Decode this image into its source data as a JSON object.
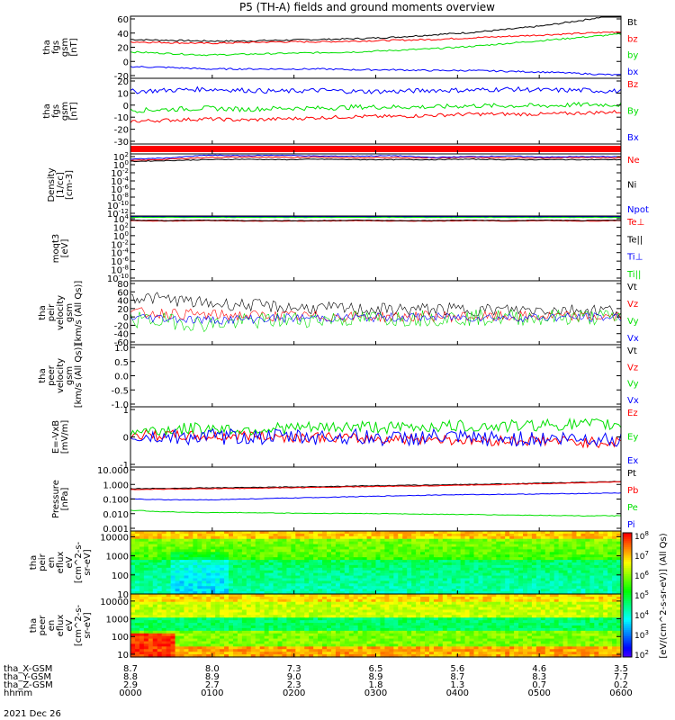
{
  "title": "P5 (TH-A) fields and ground moments overview",
  "date_label": "2021 Dec 26",
  "ephemeris": {
    "labels": [
      "tha_X-GSM",
      "tha_Y-GSM",
      "tha_Z-GSM",
      "hhmm"
    ],
    "rows": [
      [
        "8.7",
        "8.0",
        "7.3",
        "6.5",
        "5.6",
        "4.6",
        "3.5"
      ],
      [
        "8.8",
        "8.9",
        "9.0",
        "8.9",
        "8.7",
        "8.3",
        "7.7"
      ],
      [
        "2.9",
        "2.7",
        "2.3",
        "1.8",
        "1.3",
        "0.7",
        "0.2"
      ],
      [
        "0000",
        "0100",
        "0200",
        "0300",
        "0400",
        "0500",
        "0600"
      ]
    ]
  },
  "colors": {
    "black": "#000000",
    "red": "#ff0000",
    "green": "#00e000",
    "blue": "#0000ff"
  },
  "colorbar_label": "[eV/(cm^2-s-sr-eV)] (All Qs)",
  "colorbar_ticks": [
    "10^2",
    "10^3",
    "10^4",
    "10^5",
    "10^6",
    "10^7",
    "10^8"
  ],
  "chart_data": [
    {
      "type": "line",
      "ylabel": [
        "tha",
        "fgs",
        "gsm",
        "[nT]"
      ],
      "yticks": [
        "60",
        "40",
        "20",
        "0",
        "-20"
      ],
      "ylim": [
        -20,
        60
      ],
      "series": [
        {
          "name": "Bt",
          "color": "black",
          "values": [
            30,
            29,
            28,
            28,
            29,
            30,
            31,
            33,
            36,
            39,
            43,
            48,
            55,
            63
          ],
          "noise": 1
        },
        {
          "name": "bz",
          "color": "red",
          "values": [
            27,
            26,
            25,
            26,
            27,
            27,
            28,
            29,
            30,
            32,
            34,
            36,
            38,
            40
          ],
          "noise": 1
        },
        {
          "name": "by",
          "color": "green",
          "values": [
            14,
            12,
            10,
            11,
            12,
            13,
            14,
            16,
            18,
            21,
            25,
            29,
            33,
            37
          ],
          "noise": 1
        },
        {
          "name": "bx",
          "color": "blue",
          "values": [
            -5,
            -6,
            -8,
            -8,
            -8,
            -8,
            -9,
            -9,
            -10,
            -10,
            -11,
            -12,
            -14,
            -16
          ],
          "noise": 1
        }
      ]
    },
    {
      "type": "line",
      "ylabel": [
        "tha",
        "fgs",
        "gsm",
        "[nT]"
      ],
      "yticks": [
        "20",
        "10",
        "0",
        "-10",
        "-20",
        "-30"
      ],
      "ylim": [
        -35,
        20
      ],
      "series": [
        {
          "name": "Bz",
          "color": "red",
          "values": [
            -16,
            -15,
            -14,
            -15,
            -14,
            -13,
            -12,
            -12,
            -11,
            -10,
            -10,
            -10,
            -9,
            -8
          ],
          "noise": 1.5
        },
        {
          "name": "By",
          "color": "green",
          "values": [
            -7,
            -6,
            -5,
            -6,
            -5,
            -5,
            -4,
            -4,
            -4,
            -3,
            -3,
            -3,
            -2,
            -2
          ],
          "noise": 2
        },
        {
          "name": "Bx",
          "color": "blue",
          "values": [
            9,
            10,
            11,
            10,
            9,
            10,
            9,
            9,
            10,
            10,
            11,
            10,
            10,
            9
          ],
          "noise": 2
        }
      ]
    },
    {
      "type": "bar",
      "ylabel": [],
      "yticks": [],
      "ylim": [
        0,
        1
      ],
      "series": [
        {
          "name": "",
          "color": "red",
          "values": [
            1
          ]
        }
      ]
    },
    {
      "type": "line",
      "log": true,
      "ylabel": [
        "Density",
        "[1/cc]",
        "[cm-3]"
      ],
      "yticks": [
        "10^2",
        "10^0",
        "10^-2",
        "10^-4",
        "10^-6",
        "10^-8",
        "10^-10",
        "10^-12"
      ],
      "ylim": [
        -12,
        2
      ],
      "series": [
        {
          "name": "Ne",
          "color": "red",
          "values": [
            0.5,
            0.8,
            1.2,
            1.3,
            1.2,
            1.3,
            1.1,
            1.2,
            1.1,
            1.2,
            1.1,
            1.1,
            1.2,
            1.1
          ],
          "noise": 0.1
        },
        {
          "name": "Ni",
          "color": "black",
          "values": [
            0.3,
            0.5,
            0.7,
            0.8,
            0.7,
            0.8,
            0.7,
            0.7,
            0.7,
            0.8,
            0.7,
            0.7,
            0.7,
            0.7
          ],
          "noise": 0.08
        },
        {
          "name": "Npot",
          "color": "blue",
          "values": [
            0.8,
            1.1,
            1.7,
            1.6,
            1.7,
            1.5,
            1.5,
            1.6,
            1.2,
            1.4,
            1.5,
            1.3,
            1.4,
            1.4
          ],
          "noise": 0.08
        }
      ]
    },
    {
      "type": "line",
      "log": true,
      "ylabel": [
        "moqt3",
        "[eV]"
      ],
      "yticks": [
        "10^4",
        "10^2",
        "10^0",
        "10^-2",
        "10^-4",
        "10^-6",
        "10^-8",
        "10^-10"
      ],
      "ylim": [
        -10,
        4
      ],
      "series": [
        {
          "name": "Te⊥",
          "color": "red",
          "values": [
            3.0,
            2.9,
            3.0,
            2.9,
            2.9,
            2.9,
            3.0,
            2.9,
            2.9,
            3.0,
            2.9,
            3.0,
            2.9,
            3.0
          ],
          "noise": 0.05
        },
        {
          "name": "Te||",
          "color": "black",
          "values": [
            3.1,
            3.0,
            3.1,
            3.0,
            3.0,
            3.0,
            3.1,
            3.0,
            3.0,
            3.1,
            3.0,
            3.1,
            3.0,
            3.1
          ],
          "noise": 0.05
        },
        {
          "name": "Ti⊥",
          "color": "blue",
          "values": [
            3.9,
            3.9,
            3.8,
            3.9,
            3.9,
            3.9,
            3.9,
            3.9,
            3.9,
            3.9,
            3.9,
            3.9,
            3.9,
            3.9
          ],
          "noise": 0.03
        },
        {
          "name": "Ti||",
          "color": "green",
          "values": [
            3.7,
            3.7,
            3.7,
            3.7,
            3.7,
            3.7,
            3.7,
            3.7,
            3.7,
            3.7,
            3.7,
            3.7,
            3.7,
            3.7
          ],
          "noise": 0.03
        }
      ]
    },
    {
      "type": "line",
      "ylabel": [
        "tha",
        "peir",
        "velocity",
        "gsm",
        "[km/s (All Qs)]"
      ],
      "yticks": [
        "80",
        "60",
        "40",
        "20",
        "0",
        "-20",
        "-40",
        "-60"
      ],
      "ylim": [
        -60,
        80
      ],
      "series": [
        {
          "name": "Vt",
          "color": "black",
          "values": [
            45,
            40,
            30,
            28,
            22,
            20,
            18,
            17,
            18,
            17,
            16,
            17,
            16,
            16
          ],
          "noise": 14
        },
        {
          "name": "Vz",
          "color": "red",
          "values": [
            10,
            9,
            5,
            4,
            3,
            2,
            2,
            1,
            2,
            1,
            1,
            2,
            1,
            1
          ],
          "noise": 12
        },
        {
          "name": "Vy",
          "color": "green",
          "values": [
            -5,
            -8,
            -15,
            -10,
            -6,
            -4,
            -3,
            -2,
            -1,
            -1,
            0,
            0,
            0,
            0
          ],
          "noise": 18
        },
        {
          "name": "Vx",
          "color": "blue",
          "values": [
            0,
            -2,
            -6,
            -4,
            -2,
            -1,
            -1,
            0,
            0,
            0,
            0,
            0,
            0,
            0
          ],
          "noise": 10
        }
      ]
    },
    {
      "type": "line",
      "ylabel": [
        "tha",
        "peer",
        "velocity",
        "gsm",
        "[km/s (All Qs)]"
      ],
      "yticks": [
        "1.0",
        "0.5",
        "0.0",
        "-0.5",
        "-1.0"
      ],
      "ylim": [
        -1,
        1
      ],
      "series": [
        {
          "name": "Vt",
          "color": "black",
          "values": []
        },
        {
          "name": "Vz",
          "color": "red",
          "values": []
        },
        {
          "name": "Vy",
          "color": "green",
          "values": []
        },
        {
          "name": "Vx",
          "color": "blue",
          "values": []
        }
      ]
    },
    {
      "type": "line",
      "ylabel": [
        "E=-VxB",
        "[mV/m]"
      ],
      "yticks": [
        "1",
        "0",
        "-1"
      ],
      "ylim": [
        -1.7,
        1.7
      ],
      "series": [
        {
          "name": "Ez",
          "color": "red",
          "values": [
            0.1,
            0.1,
            0.0,
            0.1,
            0.0,
            0.0,
            -0.1,
            -0.1,
            -0.1,
            -0.2,
            -0.2,
            -0.2,
            -0.3,
            -0.3
          ],
          "noise": 0.3
        },
        {
          "name": "Ey",
          "color": "green",
          "values": [
            0.3,
            0.4,
            0.5,
            0.4,
            0.5,
            0.5,
            0.6,
            0.5,
            0.6,
            0.6,
            0.6,
            0.7,
            0.7,
            0.7
          ],
          "noise": 0.35
        },
        {
          "name": "Ex",
          "color": "blue",
          "values": [
            0.0,
            0.0,
            0.0,
            0.0,
            0.0,
            0.0,
            0.0,
            -0.1,
            0.0,
            -0.1,
            -0.1,
            -0.1,
            -0.1,
            -0.1
          ],
          "noise": 0.45
        }
      ]
    },
    {
      "type": "line",
      "log": true,
      "ylabel": [
        "Pressure",
        "[nPa]"
      ],
      "yticks": [
        "10.000",
        "1.000",
        "0.100",
        "0.010",
        "0.001"
      ],
      "ylim": [
        -3,
        1
      ],
      "series": [
        {
          "name": "Pt",
          "color": "black",
          "values": [
            -0.35,
            -0.33,
            -0.3,
            -0.28,
            -0.25,
            -0.22,
            -0.18,
            -0.15,
            -0.12,
            -0.08,
            -0.05,
            0.0,
            0.05,
            0.1
          ],
          "noise": 0.02
        },
        {
          "name": "Pb",
          "color": "red",
          "values": [
            -0.4,
            -0.38,
            -0.35,
            -0.33,
            -0.3,
            -0.27,
            -0.23,
            -0.2,
            -0.17,
            -0.12,
            -0.08,
            -0.03,
            0.02,
            0.08
          ],
          "noise": 0.02
        },
        {
          "name": "Pe",
          "color": "green",
          "values": [
            -1.7,
            -1.8,
            -1.85,
            -1.85,
            -1.88,
            -1.9,
            -1.9,
            -1.92,
            -1.95,
            -1.97,
            -2.0,
            -2.02,
            -2.05,
            -2.05
          ],
          "noise": 0.02
        },
        {
          "name": "Pi",
          "color": "blue",
          "values": [
            -1.0,
            -1.05,
            -1.05,
            -1.0,
            -0.95,
            -0.9,
            -0.85,
            -0.8,
            -0.75,
            -0.72,
            -0.7,
            -0.68,
            -0.65,
            -0.62
          ],
          "noise": 0.02
        }
      ]
    },
    {
      "type": "heatmap",
      "ylabel": [
        "tha",
        "peir",
        "en",
        "eflux",
        "eV",
        "[cm^2-s-",
        "sr-eV]"
      ],
      "yticks": [
        "10000",
        "1000",
        "100",
        "10"
      ],
      "ylim": [
        10,
        20000
      ],
      "log": true
    },
    {
      "type": "heatmap",
      "ylabel": [
        "tha",
        "peer",
        "en",
        "eflux",
        "eV",
        "[cm^2-s-",
        "sr-eV]"
      ],
      "yticks": [
        "10000",
        "1000",
        "100",
        "10"
      ],
      "ylim": [
        7,
        25000
      ],
      "log": true
    }
  ]
}
